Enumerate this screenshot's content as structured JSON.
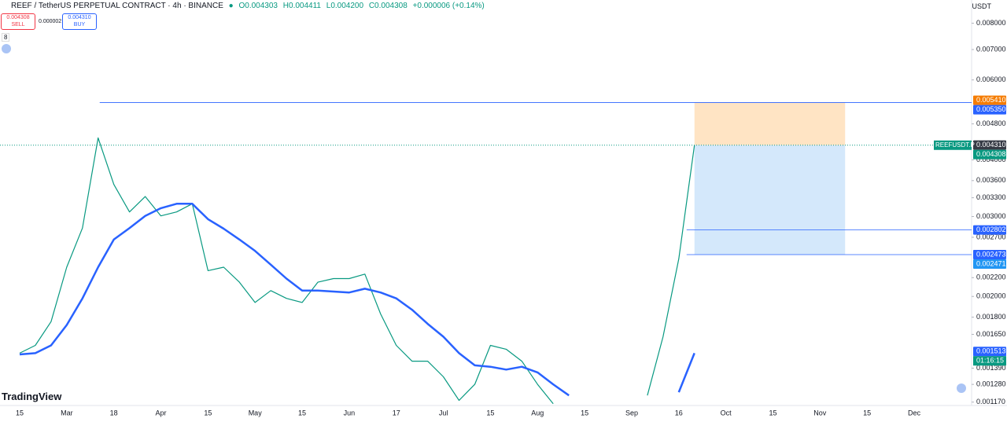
{
  "header": {
    "symbol": "REEF / TetherUS PERPETUAL CONTRACT · 4h · BINANCE",
    "open": "O0.004303",
    "high": "H0.004411",
    "low": "L0.004200",
    "close": "C0.004308",
    "change": "+0.000006 (+0.14%)",
    "sell_price": "0.004308",
    "sell": "SELL",
    "spread": "0.000002",
    "buy_price": "0.004310",
    "buy": "BUY",
    "indicator": "8",
    "unit": "USDT",
    "logo": "TradingView",
    "ticker": "REEFUSDT.P",
    "countdown": "01:16:15"
  },
  "chart_data": {
    "type": "line",
    "log_scale": true,
    "categories": [
      "15",
      null,
      null,
      "Mar",
      null,
      null,
      "18",
      null,
      null,
      "Apr",
      null,
      null,
      "15",
      null,
      null,
      "May",
      null,
      null,
      "15",
      null,
      null,
      "Jun",
      null,
      null,
      "17",
      null,
      null,
      "Jul",
      null,
      null,
      "15",
      null,
      null,
      "Aug",
      null,
      null,
      "15",
      null,
      null,
      "Sep",
      null,
      null,
      "16",
      null,
      null,
      "Oct",
      null,
      null,
      "15",
      null,
      null,
      "Nov",
      null,
      null,
      "15",
      null,
      null,
      "Dec"
    ],
    "series": [
      {
        "color": "#089981",
        "values": [
          0.0015,
          0.00156,
          0.00176,
          0.00232,
          0.00283,
          0.00447,
          0.00353,
          0.00307,
          0.00332,
          0.00301,
          0.00307,
          0.0032,
          0.00228,
          0.00232,
          0.00215,
          0.00194,
          0.00206,
          0.00198,
          0.00194,
          0.00215,
          0.00219,
          0.00219,
          0.00224,
          0.00183,
          0.00156,
          0.00144,
          0.00144,
          0.00133,
          0.00118,
          0.00128,
          0.00156,
          0.00153,
          0.00144,
          0.00128,
          0.00116,
          null,
          null,
          null,
          null,
          null,
          0.00121,
          0.00163,
          0.00242,
          0.004308,
          null,
          null,
          null,
          null,
          null,
          null,
          null,
          null,
          null,
          null,
          null,
          null,
          null,
          null
        ]
      },
      {
        "color": "#2962ff",
        "values": [
          0.00149,
          0.0015,
          0.00156,
          0.00173,
          0.00198,
          0.00232,
          0.00267,
          0.00283,
          0.00301,
          0.00313,
          0.0032,
          0.0032,
          0.00296,
          0.00282,
          0.00267,
          0.00252,
          0.00235,
          0.00219,
          0.00206,
          0.00206,
          0.00205,
          0.00204,
          0.00208,
          0.00204,
          0.00198,
          0.00187,
          0.00174,
          0.00163,
          0.0015,
          0.00141,
          0.0014,
          0.00138,
          0.0014,
          0.00136,
          0.00128,
          0.00121,
          null,
          null,
          null,
          null,
          null,
          null,
          0.00123,
          0.0015,
          null,
          null,
          null,
          null,
          null,
          null,
          null,
          null,
          null,
          null,
          null,
          null,
          null,
          null
        ]
      }
    ],
    "ylim": [
      0.00115,
      0.009
    ],
    "yticks": [
      {
        "value": 0.008,
        "label": "0.008000"
      },
      {
        "value": 0.007,
        "label": "0.007000"
      },
      {
        "value": 0.006,
        "label": "0.006000"
      },
      {
        "value": 0.0048,
        "label": "0.004800"
      },
      {
        "value": 0.004,
        "label": "0.004000"
      },
      {
        "value": 0.0036,
        "label": "0.003600"
      },
      {
        "value": 0.0033,
        "label": "0.003300"
      },
      {
        "value": 0.003,
        "label": "0.003000"
      },
      {
        "value": 0.0027,
        "label": "0.002700"
      },
      {
        "value": 0.0022,
        "label": "0.002200"
      },
      {
        "value": 0.002,
        "label": "0.002000"
      },
      {
        "value": 0.0018,
        "label": "0.001800"
      },
      {
        "value": 0.00165,
        "label": "0.001650"
      },
      {
        "value": 0.00139,
        "label": "0.001390"
      },
      {
        "value": 0.00128,
        "label": "0.001280"
      },
      {
        "value": 0.00117,
        "label": "0.001170"
      }
    ],
    "price_labels": [
      {
        "value": 0.00541,
        "label": "0.005410",
        "color": "#f57c00"
      },
      {
        "value": 0.00535,
        "label": "0.005350",
        "color": "#2962ff"
      },
      {
        "value": 0.00431,
        "label": "0.004310",
        "color": "#363a45"
      },
      {
        "value": 0.004308,
        "label": "0.004308",
        "color": "#089981"
      },
      {
        "value": 0.002802,
        "label": "0.002802",
        "color": "#2962ff"
      },
      {
        "value": 0.002473,
        "label": "0.002473",
        "color": "#2962ff"
      },
      {
        "value": 0.002471,
        "label": "0.002471",
        "color": "#2196f3"
      },
      {
        "value": 0.001513,
        "label": "0.001513",
        "color": "#2962ff"
      }
    ],
    "position": {
      "take_profit": 0.00535,
      "entry": 0.004308,
      "stop": 0.002473,
      "target_color": "#ffe4c4",
      "stop_color": "#d4e8fb"
    },
    "levels": [
      0.00535,
      0.002802,
      0.002473
    ]
  }
}
